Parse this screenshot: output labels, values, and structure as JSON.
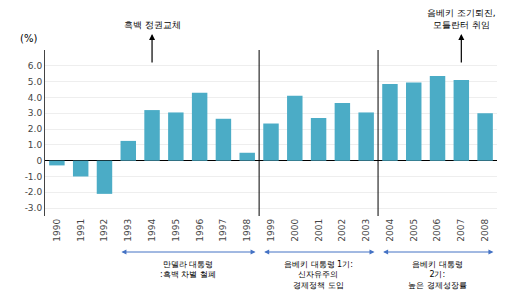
{
  "chart_data": {
    "type": "bar",
    "categories": [
      "1990",
      "1991",
      "1992",
      "1993",
      "1994",
      "1995",
      "1996",
      "1997",
      "1998",
      "1999",
      "2000",
      "2001",
      "2002",
      "2003",
      "2004",
      "2005",
      "2006",
      "2007",
      "2008"
    ],
    "values": [
      -0.3,
      -1.0,
      -2.1,
      1.25,
      3.2,
      3.05,
      4.3,
      2.65,
      0.5,
      2.35,
      4.1,
      2.7,
      3.65,
      3.05,
      4.85,
      4.95,
      5.35,
      5.1,
      3.0
    ],
    "color": "#4BACC6",
    "ylabel": "(%)",
    "ylim": [
      -3.5,
      7.0
    ],
    "yticks": [
      {
        "value": -3.0,
        "label": "-3.0"
      },
      {
        "value": -2.0,
        "label": "-2.0"
      },
      {
        "value": -1.0,
        "label": "-1.0"
      },
      0,
      {
        "value": 1.0,
        "label": "1.0"
      },
      {
        "value": 2.0,
        "label": "2.0"
      },
      {
        "value": 3.0,
        "label": "3.0"
      },
      {
        "value": 4.0,
        "label": "4.0"
      },
      {
        "value": 5.0,
        "label": "5.0"
      },
      {
        "value": 6.0,
        "label": "6.0"
      }
    ],
    "grid": true,
    "annotations": [
      {
        "text": "흑백 정권교체",
        "x": "1994"
      },
      {
        "text": "음베키 조기퇴진,\n모틀란터 취임",
        "x": "2007"
      }
    ],
    "sections": [
      {
        "text": "만델라 대통령\n:흑백 차별 철폐",
        "from": "1993",
        "to": "1998"
      },
      {
        "text": "음베키 대통령 1기:\n신자유주의\n경제정책 도입",
        "from": "1999",
        "to": "2003"
      },
      {
        "text": "음베키 대통령\n2기:\n높은 경제성장률",
        "from": "2004",
        "to": "2008"
      }
    ]
  }
}
